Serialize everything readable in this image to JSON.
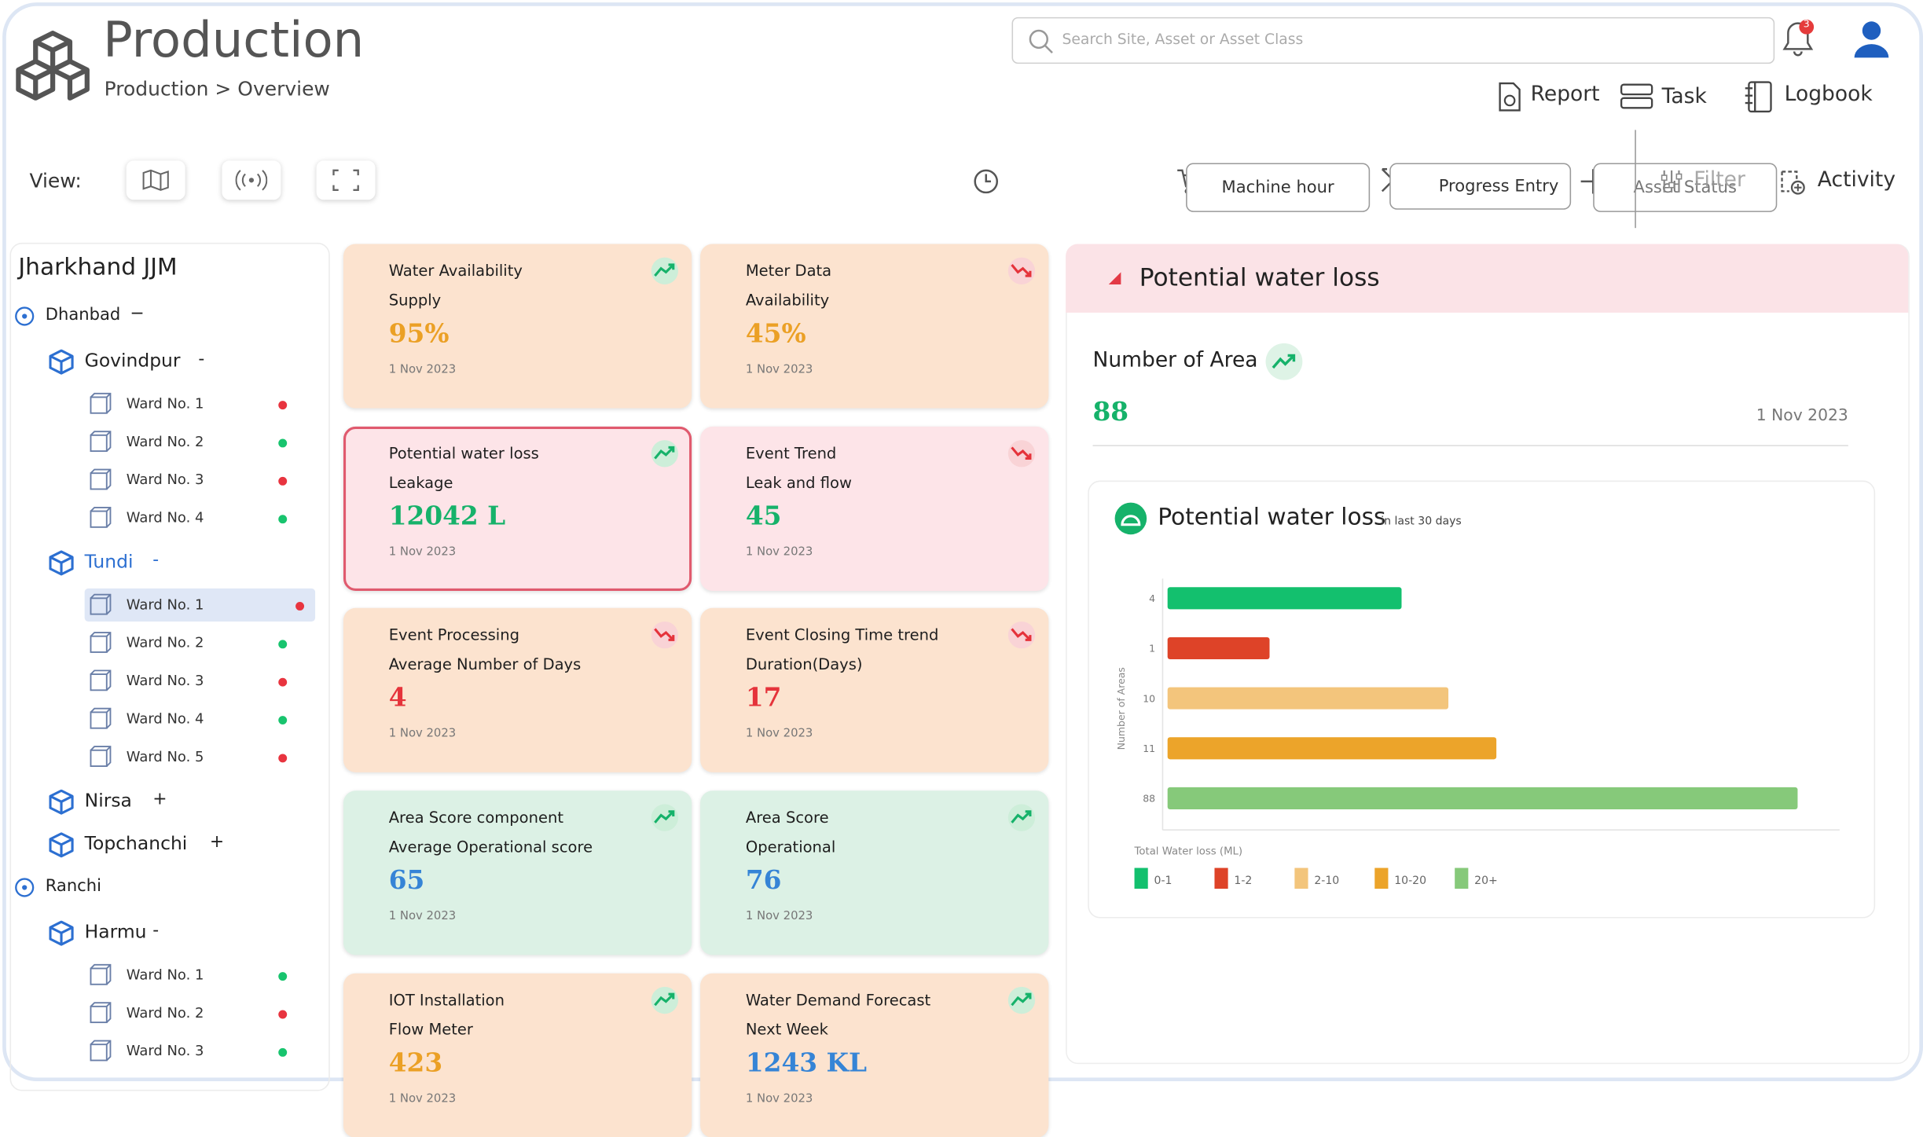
{
  "header": {
    "title": "Production",
    "breadcrumb": "Production > Overview",
    "search_placeholder": "Search Site, Asset or Asset Class",
    "notification_count": "3",
    "actions": [
      "Report",
      "Task",
      "Logbook"
    ]
  },
  "toolbar": {
    "view_label": "View:",
    "buttons": [
      "Machine hour",
      "Progress Entry",
      "Asset Status",
      "Filter",
      "Activity"
    ]
  },
  "sidebar": {
    "title": "Jharkhand JJM",
    "regions": [
      {
        "name": "Dhanbad",
        "toggle": "−",
        "blocks": [
          {
            "name": "Govindpur",
            "toggle": "-",
            "active": false,
            "wards": [
              {
                "name": "Ward No. 1",
                "status": "#e8343f"
              },
              {
                "name": "Ward No. 2",
                "status": "#18c46e"
              },
              {
                "name": "Ward No. 3",
                "status": "#e8343f"
              },
              {
                "name": "Ward No. 4",
                "status": "#18c46e"
              }
            ]
          },
          {
            "name": "Tundi",
            "toggle": "-",
            "active": true,
            "wards": [
              {
                "name": "Ward No. 1",
                "status": "#e8343f",
                "selected": true
              },
              {
                "name": "Ward No. 2",
                "status": "#18c46e"
              },
              {
                "name": "Ward No. 3",
                "status": "#e8343f"
              },
              {
                "name": "Ward No. 4",
                "status": "#18c46e"
              },
              {
                "name": "Ward No. 5",
                "status": "#e8343f"
              }
            ]
          },
          {
            "name": "Nirsa",
            "toggle": "+",
            "active": false,
            "wards": []
          },
          {
            "name": "Topchanchi",
            "toggle": "+",
            "active": false,
            "wards": []
          }
        ]
      },
      {
        "name": "Ranchi",
        "blocks": [
          {
            "name": "Harmu",
            "toggle": "-",
            "active": false,
            "wards": [
              {
                "name": "Ward No. 1",
                "status": "#18c46e"
              },
              {
                "name": "Ward No. 2",
                "status": "#e8343f"
              },
              {
                "name": "Ward No. 3",
                "status": "#18c46e"
              }
            ]
          }
        ]
      }
    ]
  },
  "cards": [
    {
      "title": "Water Availability",
      "subtitle": "Supply",
      "value": "95%",
      "date": "1 Nov 2023",
      "trend": "up",
      "value_color": "#eba025",
      "background": "#fce3cf"
    },
    {
      "title": "Meter Data",
      "subtitle": "Availability",
      "value": "45%",
      "date": "1 Nov 2023",
      "trend": "down",
      "value_color": "#eba025",
      "background": "#fce3cf"
    },
    {
      "title": "Potential water loss",
      "subtitle": "Leakage",
      "value": "12042 L",
      "date": "1 Nov 2023",
      "trend": "up",
      "value_color": "#16b26a",
      "background": "#fde4e8",
      "highlighted": true
    },
    {
      "title": "Event Trend",
      "subtitle": "Leak and flow",
      "value": "45",
      "date": "1 Nov 2023",
      "trend": "down",
      "value_color": "#16b26a",
      "background": "#fde4e8"
    },
    {
      "title": "Event Processing",
      "subtitle": "Average Number of Days",
      "value": "4",
      "date": "1 Nov 2023",
      "trend": "down",
      "value_color": "#e5333b",
      "background": "#fce3cf"
    },
    {
      "title": "Event Closing Time trend",
      "subtitle": "Duration(Days)",
      "value": "17",
      "date": "1 Nov 2023",
      "trend": "down",
      "value_color": "#e5333b",
      "background": "#fce3cf"
    },
    {
      "title": "Area Score component",
      "subtitle": "Average Operational score",
      "value": "65",
      "date": "1 Nov 2023",
      "trend": "up",
      "value_color": "#3584d6",
      "background": "#dcf1e5"
    },
    {
      "title": "Area Score",
      "subtitle": "Operational",
      "value": "76",
      "date": "1 Nov 2023",
      "trend": "up",
      "value_color": "#3584d6",
      "background": "#dcf1e5"
    },
    {
      "title": "IOT Installation",
      "subtitle": "Flow Meter",
      "value": "423",
      "date": "1 Nov 2023",
      "trend": "up",
      "value_color": "#eba025",
      "background": "#fce3cf"
    },
    {
      "title": "Water Demand Forecast",
      "subtitle": "Next Week",
      "value": "1243 KL",
      "date": "1 Nov 2023",
      "trend": "up",
      "value_color": "#3584d6",
      "background": "#fce3cf"
    }
  ],
  "panel": {
    "header": "Potential water loss",
    "metric_label": "Number of Area",
    "metric_value": "88",
    "date": "1 Nov 2023"
  },
  "chart_data": {
    "type": "bar",
    "orientation": "horizontal",
    "title": "Potential water loss",
    "subtitle": "in last 30 days",
    "y_label": "Number of Areas",
    "x_label": "Total Water loss (ML)",
    "categories": [
      "4",
      "1",
      "10",
      "11",
      "88"
    ],
    "values": [
      19.5,
      8.5,
      23.4,
      27.4,
      52.5
    ],
    "colors": [
      "#13c06e",
      "#de4328",
      "#f3c57c",
      "#eca42a",
      "#86c97a"
    ],
    "xlim": [
      0,
      56
    ],
    "legend": [
      "0-1",
      "1-2",
      "2-10",
      "10-20",
      "20+"
    ]
  }
}
